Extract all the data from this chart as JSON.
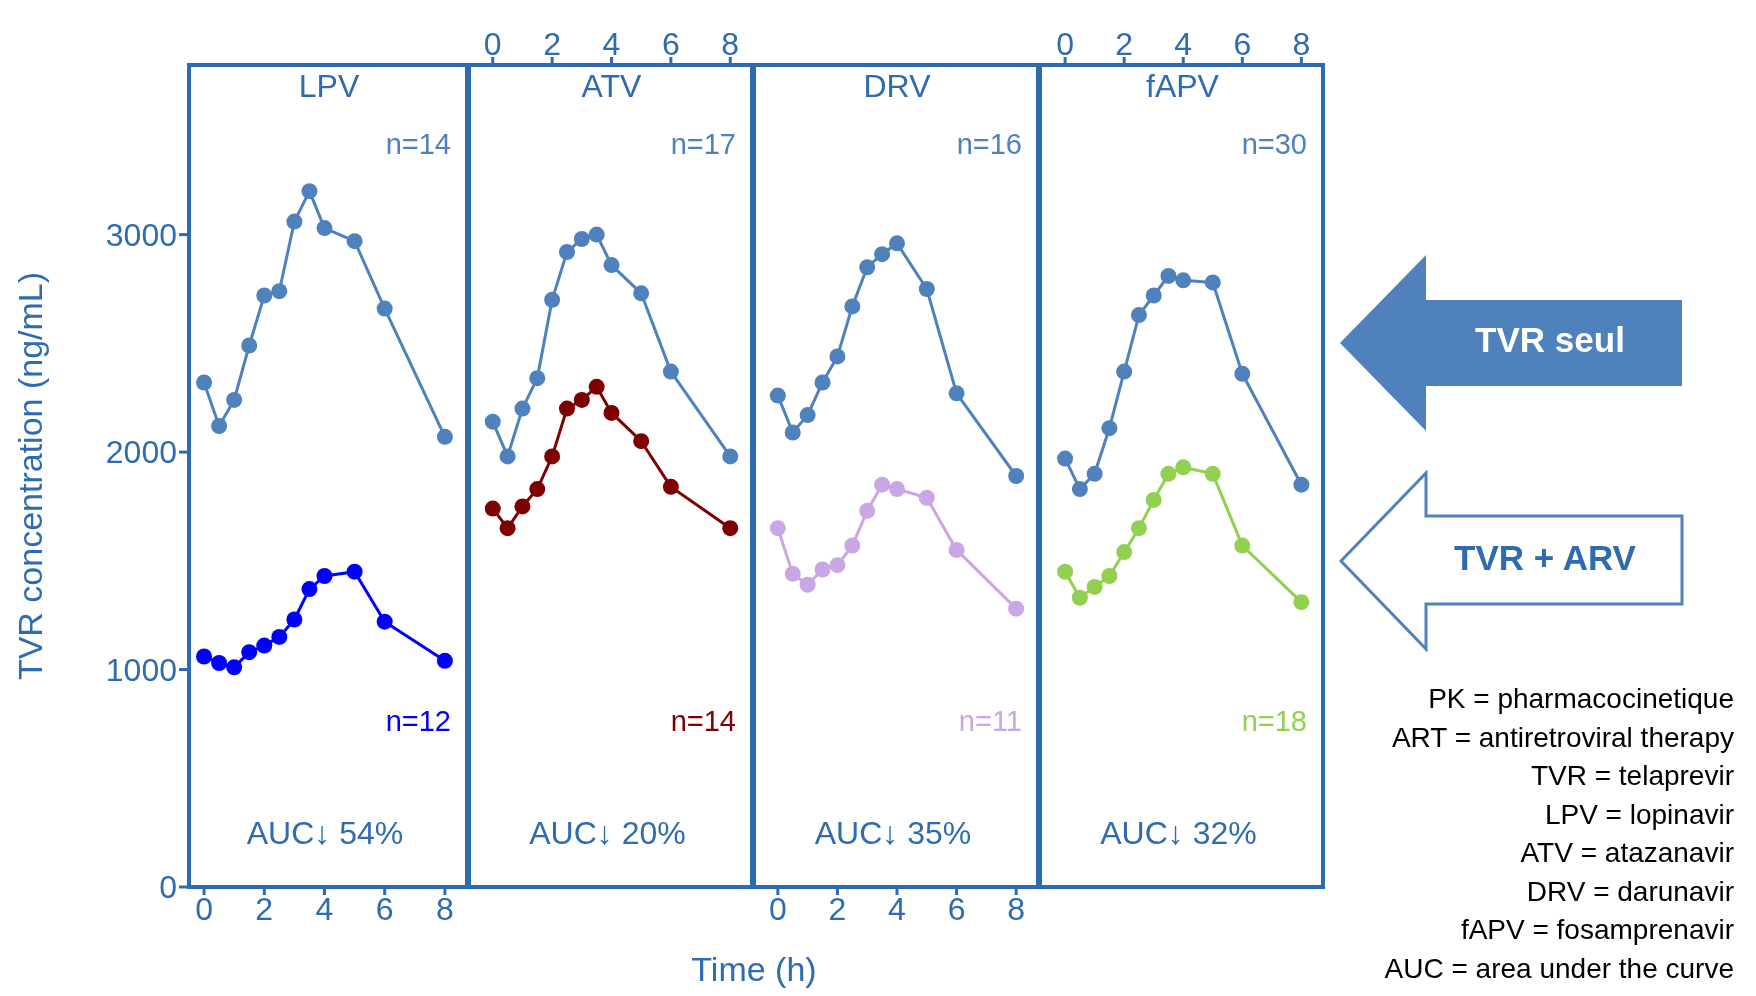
{
  "chart_data": [
    {
      "type": "line",
      "title": "LPV",
      "ylabel": "TVR concentration (ng/mL)",
      "x": [
        0,
        0.5,
        1,
        1.5,
        2,
        2.5,
        3,
        3.5,
        4,
        5,
        6,
        8
      ],
      "xlim": [
        -0.5,
        8.8
      ],
      "xticks": [
        0,
        2,
        4,
        6,
        8
      ],
      "ylim": [
        0,
        3780
      ],
      "yticks": [
        0,
        1000,
        2000,
        3000
      ],
      "marker": "circle",
      "series": [
        {
          "color": "#4f81bd",
          "values": [
            2320,
            2120,
            2240,
            2490,
            2720,
            2740,
            3060,
            3200,
            3030,
            2970,
            2660,
            2070
          ]
        },
        {
          "color": "#0000ff",
          "values": [
            1060,
            1030,
            1010,
            1080,
            1110,
            1150,
            1230,
            1370,
            1430,
            1450,
            1220,
            1040
          ]
        }
      ],
      "annotations": [
        "n=14",
        "n=12",
        "AUC↓ 54%"
      ]
    },
    {
      "type": "line",
      "title": "ATV",
      "x": [
        0,
        0.5,
        1,
        1.5,
        2,
        2.5,
        3,
        3.5,
        4,
        5,
        6,
        8
      ],
      "x2lim": [
        -0.8,
        8.8
      ],
      "x2ticks": [
        0,
        2,
        4,
        6,
        8
      ],
      "ylim": [
        0,
        3780
      ],
      "tick_labels": false,
      "marker": "circle",
      "series": [
        {
          "color": "#4f81bd",
          "values": [
            2140,
            1980,
            2200,
            2340,
            2700,
            2920,
            2980,
            3000,
            2860,
            2730,
            2370,
            1980
          ]
        },
        {
          "color": "#7f0000",
          "values": [
            1740,
            1650,
            1750,
            1830,
            1980,
            2200,
            2240,
            2300,
            2180,
            2050,
            1840,
            1650
          ]
        }
      ],
      "annotations": [
        "n=17",
        "n=14",
        "AUC↓ 20%"
      ]
    },
    {
      "type": "line",
      "title": "DRV",
      "xlabel": "Time (h)",
      "x": [
        0,
        0.5,
        1,
        1.5,
        2,
        2.5,
        3,
        3.5,
        4,
        5,
        6,
        8
      ],
      "xlim": [
        -0.8,
        8.8
      ],
      "xticks": [
        0,
        2,
        4,
        6,
        8
      ],
      "ylim": [
        0,
        3780
      ],
      "tick_labels": "x",
      "marker": "circle",
      "series": [
        {
          "color": "#4f81bd",
          "values": [
            2260,
            2090,
            2170,
            2320,
            2440,
            2670,
            2850,
            2910,
            2960,
            2750,
            2270,
            1890
          ]
        },
        {
          "color": "#c9a6e6",
          "values": [
            1650,
            1440,
            1390,
            1460,
            1480,
            1570,
            1730,
            1850,
            1830,
            1790,
            1550,
            1280
          ]
        }
      ],
      "annotations": [
        "n=16",
        "n=11",
        "AUC↓ 35%"
      ]
    },
    {
      "type": "line",
      "title": "fAPV",
      "x": [
        0,
        0.5,
        1,
        1.5,
        2,
        2.5,
        3,
        3.5,
        4,
        5,
        6,
        8
      ],
      "x2lim": [
        -0.85,
        8.8
      ],
      "x2ticks": [
        0,
        2,
        4,
        6,
        8
      ],
      "ylim": [
        0,
        3780
      ],
      "tick_labels": false,
      "marker": "circle",
      "series": [
        {
          "color": "#4f81bd",
          "values": [
            1970,
            1830,
            1900,
            2110,
            2370,
            2630,
            2720,
            2810,
            2790,
            2780,
            2360,
            1850
          ]
        },
        {
          "color": "#92d050",
          "values": [
            1450,
            1330,
            1380,
            1430,
            1540,
            1650,
            1780,
            1900,
            1930,
            1900,
            1570,
            1310
          ]
        }
      ],
      "annotations": [
        "n=30",
        "n=18",
        "AUC↓ 32%"
      ]
    },
    {
      "type": "other",
      "annotations": [
        "TVR seul",
        "TVR + ARV",
        "PK = pharmacocinetique",
        "ART = antiretroviral therapy",
        "TVR = telaprevir",
        "LPV = lopinavir",
        "ATV = atazanavir",
        "DRV = darunavir",
        "fAPV = fosamprenavir",
        "AUC = area under the curve"
      ]
    }
  ]
}
